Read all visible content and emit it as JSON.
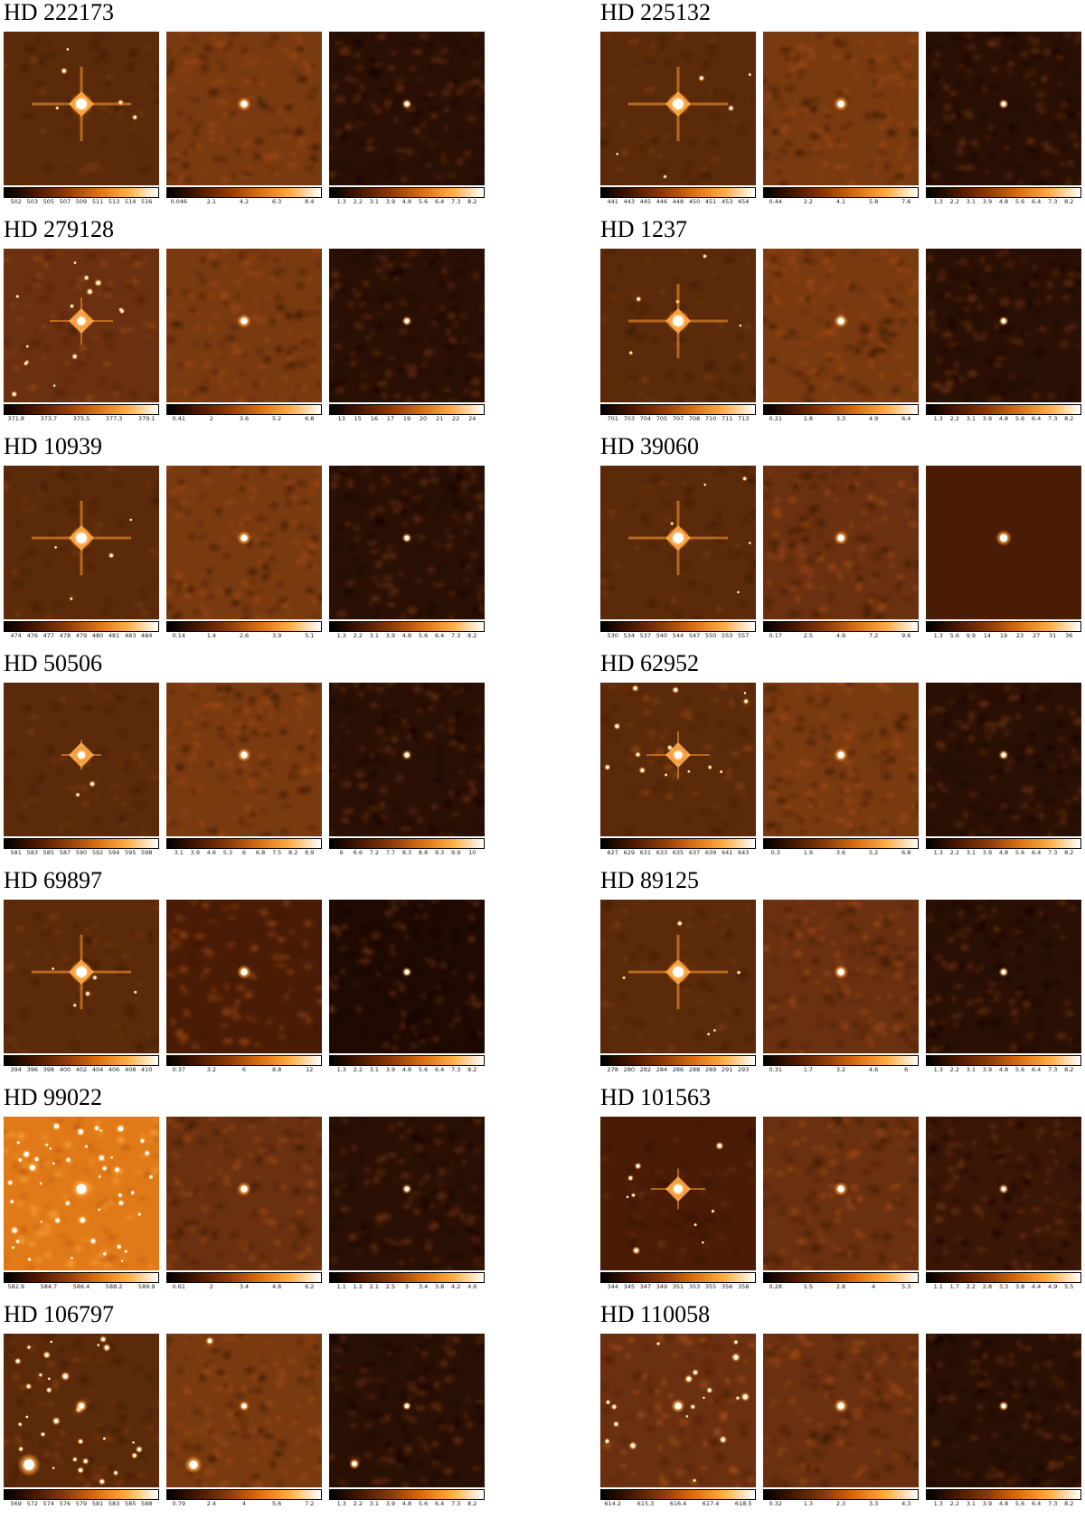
{
  "colormap": {
    "name": "heat",
    "stops": [
      "#000000",
      "#4a1800",
      "#8c3a08",
      "#d96f12",
      "#ffae45",
      "#ffffff"
    ]
  },
  "targets": [
    {
      "name": "HD 222173",
      "panels": [
        {
          "scene": "psf-bright",
          "bg": "#5a2a0a",
          "ticks": [
            "502",
            "503",
            "505",
            "507",
            "509",
            "511",
            "513",
            "514",
            "516"
          ]
        },
        {
          "scene": "point-medium",
          "bg": "#7a3a10",
          "ticks": [
            "0.046",
            "2.1",
            "4.2",
            "6.3",
            "8.4"
          ]
        },
        {
          "scene": "point-faint",
          "bg": "#2a1004",
          "ticks": [
            "1.3",
            "2.2",
            "3.1",
            "3.9",
            "4.8",
            "5.6",
            "6.4",
            "7.3",
            "8.2"
          ]
        }
      ]
    },
    {
      "name": "HD 225132",
      "panels": [
        {
          "scene": "psf-bright",
          "bg": "#5a2a0a",
          "ticks": [
            "441",
            "443",
            "445",
            "446",
            "448",
            "450",
            "451",
            "453",
            "454"
          ]
        },
        {
          "scene": "point-medium",
          "bg": "#7a3a10",
          "ticks": [
            "0.44",
            "2.2",
            "4.1",
            "5.8",
            "7.6"
          ]
        },
        {
          "scene": "point-faint",
          "bg": "#2a1004",
          "ticks": [
            "1.3",
            "2.2",
            "3.1",
            "3.9",
            "4.8",
            "5.6",
            "6.4",
            "7.3",
            "8.2"
          ]
        }
      ]
    },
    {
      "name": "HD 279128",
      "panels": [
        {
          "scene": "psf-crowded",
          "bg": "#6a3010",
          "ticks": [
            "371.8",
            "373.7",
            "375.5",
            "377.3",
            "379.1"
          ]
        },
        {
          "scene": "point-medium",
          "bg": "#7a3a10",
          "ticks": [
            "0.41",
            "2",
            "3.6",
            "5.2",
            "6.8"
          ]
        },
        {
          "scene": "point-faint",
          "bg": "#2a1004",
          "ticks": [
            "13",
            "15",
            "16",
            "17",
            "19",
            "20",
            "21",
            "22",
            "24"
          ]
        }
      ]
    },
    {
      "name": "HD 1237",
      "panels": [
        {
          "scene": "psf-bright",
          "bg": "#5a2a0a",
          "ticks": [
            "701",
            "703",
            "704",
            "705",
            "707",
            "708",
            "710",
            "711",
            "713"
          ]
        },
        {
          "scene": "point-medium",
          "bg": "#7a3a10",
          "ticks": [
            "0.21",
            "1.8",
            "3.3",
            "4.9",
            "6.4"
          ]
        },
        {
          "scene": "point-faint",
          "bg": "#2a1004",
          "ticks": [
            "1.3",
            "2.2",
            "3.1",
            "3.9",
            "4.8",
            "5.6",
            "6.4",
            "7.3",
            "8.2"
          ]
        }
      ]
    },
    {
      "name": "HD 10939",
      "panels": [
        {
          "scene": "psf-bright",
          "bg": "#5a2a0a",
          "ticks": [
            "474",
            "476",
            "477",
            "478",
            "479",
            "480",
            "481",
            "483",
            "484"
          ]
        },
        {
          "scene": "point-medium",
          "bg": "#7a3a10",
          "ticks": [
            "0.14",
            "1.4",
            "2.6",
            "3.9",
            "5.1"
          ]
        },
        {
          "scene": "point-faint",
          "bg": "#2a1004",
          "ticks": [
            "1.3",
            "2.2",
            "3.1",
            "3.9",
            "4.8",
            "5.6",
            "6.4",
            "7.3",
            "8.2"
          ]
        }
      ]
    },
    {
      "name": "HD 39060",
      "panels": [
        {
          "scene": "psf-bright",
          "bg": "#5a2a0a",
          "ticks": [
            "530",
            "534",
            "537",
            "540",
            "544",
            "547",
            "550",
            "553",
            "557"
          ]
        },
        {
          "scene": "point-medium",
          "bg": "#6a3010",
          "ticks": [
            "0.17",
            "2.5",
            "4.9",
            "7.2",
            "9.6"
          ]
        },
        {
          "scene": "point-smooth",
          "bg": "#4a1c06",
          "ticks": [
            "1.3",
            "5.6",
            "9.9",
            "14",
            "19",
            "23",
            "27",
            "31",
            "36"
          ]
        }
      ]
    },
    {
      "name": "HD 50506",
      "panels": [
        {
          "scene": "psf-compact",
          "bg": "#5a2a0a",
          "ticks": [
            "581",
            "583",
            "585",
            "587",
            "590",
            "592",
            "594",
            "595",
            "598"
          ]
        },
        {
          "scene": "point-medium",
          "bg": "#7a3a10",
          "ticks": [
            "3.1",
            "3.9",
            "4.6",
            "5.3",
            "6",
            "6.8",
            "7.5",
            "8.2",
            "8.9"
          ]
        },
        {
          "scene": "point-faint",
          "bg": "#2a1004",
          "ticks": [
            "6",
            "6.6",
            "7.2",
            "7.7",
            "8.3",
            "8.8",
            "9.3",
            "9.9",
            "10"
          ]
        }
      ]
    },
    {
      "name": "HD 62952",
      "panels": [
        {
          "scene": "psf-crowded",
          "bg": "#5a2a0a",
          "ticks": [
            "627",
            "629",
            "631",
            "633",
            "635",
            "637",
            "639",
            "641",
            "643"
          ]
        },
        {
          "scene": "point-medium",
          "bg": "#7a3a10",
          "ticks": [
            "0.3",
            "1.9",
            "3.6",
            "5.2",
            "6.8"
          ]
        },
        {
          "scene": "point-faint",
          "bg": "#2a1004",
          "ticks": [
            "1.3",
            "2.2",
            "3.1",
            "3.9",
            "4.8",
            "5.6",
            "6.4",
            "7.3",
            "8.2"
          ]
        }
      ]
    },
    {
      "name": "HD 69897",
      "panels": [
        {
          "scene": "psf-bright",
          "bg": "#5a2a0a",
          "ticks": [
            "394",
            "396",
            "398",
            "400",
            "402",
            "404",
            "406",
            "408",
            "410"
          ]
        },
        {
          "scene": "point-medium",
          "bg": "#4a1c06",
          "ticks": [
            "0.37",
            "3.2",
            "6",
            "8.8",
            "12"
          ]
        },
        {
          "scene": "point-faint",
          "bg": "#1e0a02",
          "ticks": [
            "1.3",
            "2.2",
            "3.1",
            "3.9",
            "4.8",
            "5.6",
            "6.4",
            "7.3",
            "8.2"
          ]
        }
      ]
    },
    {
      "name": "HD 89125",
      "panels": [
        {
          "scene": "psf-bright",
          "bg": "#5a2a0a",
          "ticks": [
            "278",
            "280",
            "282",
            "284",
            "286",
            "288",
            "289",
            "291",
            "293"
          ]
        },
        {
          "scene": "point-medium",
          "bg": "#6a3010",
          "ticks": [
            "0.31",
            "1.7",
            "3.2",
            "4.6",
            "6"
          ]
        },
        {
          "scene": "point-faint",
          "bg": "#2a1004",
          "ticks": [
            "1.3",
            "2.2",
            "3.1",
            "3.9",
            "4.8",
            "5.6",
            "6.4",
            "7.3",
            "8.2"
          ]
        }
      ]
    },
    {
      "name": "HD 99022",
      "panels": [
        {
          "scene": "field-dense",
          "bg": "#e07a18",
          "ticks": [
            "582.9",
            "584.7",
            "586.4",
            "588.2",
            "589.9"
          ]
        },
        {
          "scene": "point-medium",
          "bg": "#6a3010",
          "ticks": [
            "0.61",
            "2",
            "3.4",
            "4.8",
            "6.2"
          ]
        },
        {
          "scene": "point-faint",
          "bg": "#2a1004",
          "ticks": [
            "1.1",
            "1.2",
            "2.1",
            "2.5",
            "3",
            "3.4",
            "3.8",
            "4.2",
            "4.6"
          ]
        }
      ]
    },
    {
      "name": "HD 101563",
      "panels": [
        {
          "scene": "psf-field",
          "bg": "#4a1c06",
          "ticks": [
            "344",
            "345",
            "347",
            "349",
            "351",
            "353",
            "355",
            "356",
            "358"
          ]
        },
        {
          "scene": "point-medium",
          "bg": "#6a3010",
          "ticks": [
            "0.28",
            "1.5",
            "2.8",
            "4",
            "5.3"
          ]
        },
        {
          "scene": "point-faint",
          "bg": "#3a1606",
          "ticks": [
            "1.1",
            "1.7",
            "2.2",
            "2.8",
            "3.3",
            "3.8",
            "4.4",
            "4.9",
            "5.5"
          ]
        }
      ]
    },
    {
      "name": "HD 106797",
      "panels": [
        {
          "scene": "field-crowded",
          "bg": "#5a2a0a",
          "ticks": [
            "569",
            "572",
            "574",
            "576",
            "579",
            "581",
            "583",
            "585",
            "588"
          ]
        },
        {
          "scene": "point-companion",
          "bg": "#7a3a10",
          "ticks": [
            "0.79",
            "2.4",
            "4",
            "5.6",
            "7.2"
          ]
        },
        {
          "scene": "point-faint-companion",
          "bg": "#2a1004",
          "ticks": [
            "1.3",
            "2.2",
            "3.1",
            "3.9",
            "4.8",
            "5.6",
            "6.4",
            "7.3",
            "8.2"
          ]
        }
      ]
    },
    {
      "name": "HD 110058",
      "panels": [
        {
          "scene": "field-crowded2",
          "bg": "#6a3010",
          "ticks": [
            "614.2",
            "615.3",
            "616.4",
            "617.4",
            "618.5"
          ]
        },
        {
          "scene": "point-medium",
          "bg": "#6a3010",
          "ticks": [
            "0.32",
            "1.3",
            "2.3",
            "3.3",
            "4.3"
          ]
        },
        {
          "scene": "point-faint",
          "bg": "#2a1004",
          "ticks": [
            "1.3",
            "2.2",
            "3.1",
            "3.9",
            "4.8",
            "5.6",
            "6.4",
            "7.3",
            "8.2"
          ]
        }
      ]
    }
  ]
}
